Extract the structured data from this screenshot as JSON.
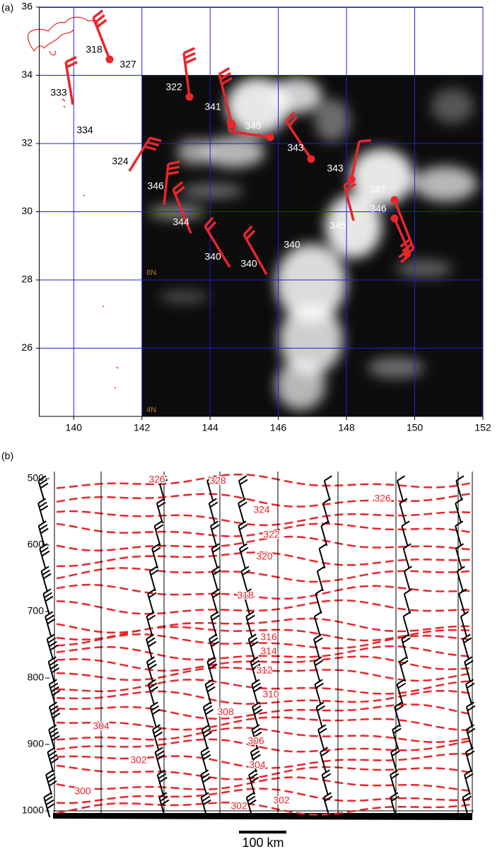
{
  "chart_data": [
    {
      "type": "map",
      "label": "(a)",
      "xlim": [
        139,
        152
      ],
      "xticks": [
        140,
        142,
        144,
        146,
        148,
        150,
        152
      ],
      "ylim": [
        24,
        36
      ],
      "yticks": [
        26,
        28,
        30,
        32,
        34,
        36
      ],
      "grid": true,
      "grid_color": "#2020d0",
      "mark_color": "#e8262b",
      "theta_labels": [
        318,
        327,
        333,
        334,
        324,
        322,
        341,
        345,
        343,
        343,
        347,
        346,
        345,
        346,
        344,
        340,
        340,
        340
      ],
      "image_labels": [
        "8N",
        "4N"
      ]
    },
    {
      "type": "cross-section",
      "label": "(b)",
      "ylim": [
        500,
        1000
      ],
      "yticks": [
        500,
        600,
        700,
        800,
        900,
        1000
      ],
      "contour_color": "#e8262b",
      "contour_labels": [
        326,
        328,
        326,
        324,
        322,
        320,
        318,
        316,
        314,
        312,
        310,
        308,
        304,
        306,
        302,
        304,
        300,
        302,
        302
      ],
      "scale_label": "100 km"
    }
  ]
}
